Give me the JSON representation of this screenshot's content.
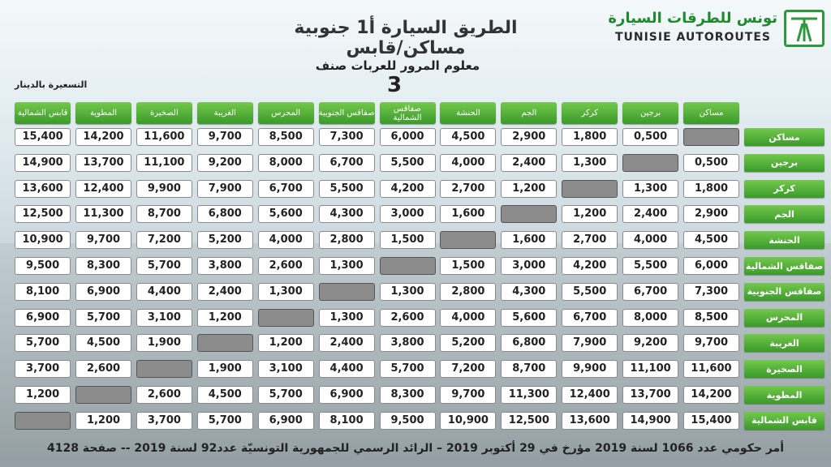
{
  "logo": {
    "arabic": "تونس للطرقات السيارة",
    "english": "TUNISIE AUTOROUTES",
    "icon": "highway-logo-icon"
  },
  "title": "الطريق السيارة أ1 جنوبية   مساكن/قابس",
  "subtitle": {
    "text": "معلوم المرور للعربات صنف",
    "class_number": "3"
  },
  "unit_label": "التسعيرة بالدينار",
  "columns": [
    "مساكن",
    "برجين",
    "كركر",
    "الجم",
    "الحنشة",
    "صفاقس الشمالية",
    "صفاقس الجنوبية",
    "المحرس",
    "الغريبة",
    "الصخيرة",
    "المطوية",
    "قابس الشمالية"
  ],
  "rows": [
    {
      "label": "مساكن",
      "values": [
        "",
        "0,500",
        "1,800",
        "2,900",
        "4,500",
        "6,000",
        "7,300",
        "8,500",
        "9,700",
        "11,600",
        "14,200",
        "15,400"
      ]
    },
    {
      "label": "برجين",
      "values": [
        "0,500",
        "",
        "1,300",
        "2,400",
        "4,000",
        "5,500",
        "6,700",
        "8,000",
        "9,200",
        "11,100",
        "13,700",
        "14,900"
      ]
    },
    {
      "label": "كركر",
      "values": [
        "1,800",
        "1,300",
        "",
        "1,200",
        "2,700",
        "4,200",
        "5,500",
        "6,700",
        "7,900",
        "9,900",
        "12,400",
        "13,600"
      ]
    },
    {
      "label": "الجم",
      "values": [
        "2,900",
        "2,400",
        "1,200",
        "",
        "1,600",
        "3,000",
        "4,300",
        "5,600",
        "6,800",
        "8,700",
        "11,300",
        "12,500"
      ]
    },
    {
      "label": "الحنشة",
      "values": [
        "4,500",
        "4,000",
        "2,700",
        "1,600",
        "",
        "1,500",
        "2,800",
        "4,000",
        "5,200",
        "7,200",
        "9,700",
        "10,900"
      ]
    },
    {
      "label": "صفاقس الشمالية",
      "values": [
        "6,000",
        "5,500",
        "4,200",
        "3,000",
        "1,500",
        "",
        "1,300",
        "2,600",
        "3,800",
        "5,700",
        "8,300",
        "9,500"
      ]
    },
    {
      "label": "صفاقس الجنوبية",
      "values": [
        "7,300",
        "6,700",
        "5,500",
        "4,300",
        "2,800",
        "1,300",
        "",
        "1,300",
        "2,400",
        "4,400",
        "6,900",
        "8,100"
      ]
    },
    {
      "label": "المحرس",
      "values": [
        "8,500",
        "8,000",
        "6,700",
        "5,600",
        "4,000",
        "2,600",
        "1,300",
        "",
        "1,200",
        "3,100",
        "5,700",
        "6,900"
      ]
    },
    {
      "label": "الغريبة",
      "values": [
        "9,700",
        "9,200",
        "7,900",
        "6,800",
        "5,200",
        "3,800",
        "2,400",
        "1,200",
        "",
        "1,900",
        "4,500",
        "5,700"
      ]
    },
    {
      "label": "الصخيرة",
      "values": [
        "11,600",
        "11,100",
        "9,900",
        "8,700",
        "7,200",
        "5,700",
        "4,400",
        "3,100",
        "1,900",
        "",
        "2,600",
        "3,700"
      ]
    },
    {
      "label": "المطوية",
      "values": [
        "14,200",
        "13,700",
        "12,400",
        "11,300",
        "9,700",
        "8,300",
        "6,900",
        "5,700",
        "4,500",
        "2,600",
        "",
        "1,200"
      ]
    },
    {
      "label": "قابس الشمالية",
      "values": [
        "15,400",
        "14,900",
        "13,600",
        "12,500",
        "10,900",
        "9,500",
        "8,100",
        "6,900",
        "5,700",
        "3,700",
        "1,200",
        ""
      ]
    }
  ],
  "footer": "أمر حكومي عدد 1066 لسنة 2019 مؤرخ في 29 أكتوبر 2019 – الرائد الرسمي للجمهورية التونسيّة عدد92 لسنة 2019 -- صفحة 4128",
  "colors": {
    "header_green": "#3a9a2a",
    "empty_cell": "#8c8c8c"
  }
}
